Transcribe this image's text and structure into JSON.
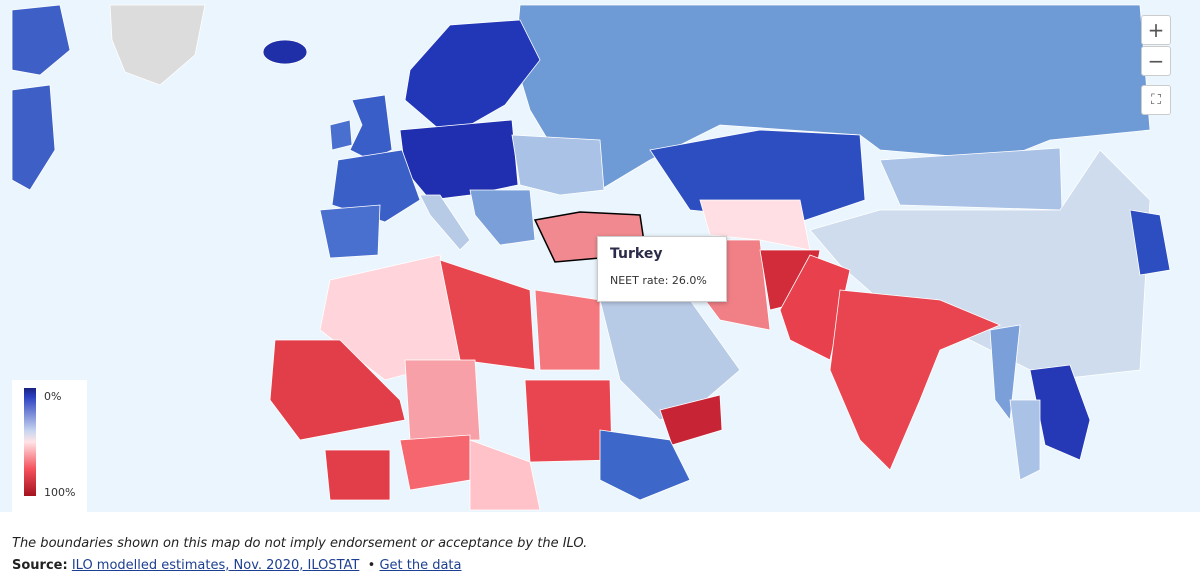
{
  "map": {
    "tooltip": {
      "title": "Turkey",
      "text": "NEET rate: 26.0%"
    },
    "legend": {
      "min_label": "0%",
      "max_label": "100%"
    },
    "controls": {
      "zoom_in": "+",
      "zoom_out": "−"
    }
  },
  "footer": {
    "disclaimer": "The boundaries shown on this map do not imply endorsement or acceptance by the ILO.",
    "source_label": "Source:",
    "source_link": "ILO modelled estimates, Nov. 2020, ILOSTAT",
    "separator": "•",
    "data_link": "Get the data"
  }
}
